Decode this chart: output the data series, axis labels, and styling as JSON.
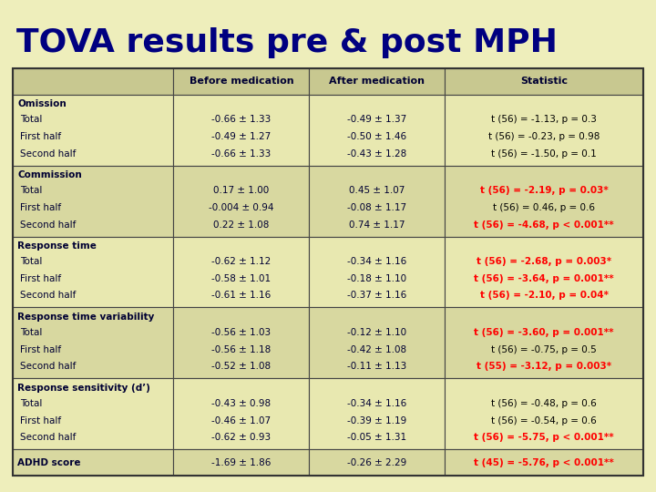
{
  "title": "TOVA results pre & post MPH",
  "background_color": "#eeeebb",
  "title_color": "#000080",
  "header_bg": "#c8c890",
  "row_bg_odd": "#e8e8b0",
  "row_bg_even": "#d8d8a0",
  "text_color": "#000033",
  "headers": [
    "",
    "Before medication",
    "After medication",
    "Statistic"
  ],
  "rows": [
    {
      "label": [
        "Omission",
        "Total",
        "First half",
        "Second half"
      ],
      "before": [
        "",
        "-0.66 ± 1.33",
        "-0.49 ± 1.27",
        "-0.66 ± 1.33"
      ],
      "after": [
        "",
        "-0.49 ± 1.37",
        "-0.50 ± 1.46",
        "-0.43 ± 1.28"
      ],
      "stat": [
        "",
        "t (56) = -1.13, p = 0.3",
        "t (56) = -0.23, p = 0.98",
        "t (56) = -1.50, p = 0.1"
      ],
      "stat_color": [
        "black",
        "black",
        "black",
        "black"
      ],
      "stat_bold": [
        false,
        false,
        false,
        false
      ]
    },
    {
      "label": [
        "Commission",
        "Total",
        "First half",
        "Second half"
      ],
      "before": [
        "",
        "0.17 ± 1.00",
        "-0.004 ± 0.94",
        "0.22 ± 1.08"
      ],
      "after": [
        "",
        "0.45 ± 1.07",
        "-0.08 ± 1.17",
        "0.74 ± 1.17"
      ],
      "stat": [
        "",
        "t (56) = -2.19, p = 0.03*",
        "t (56) = 0.46, p = 0.6",
        "t (56) = -4.68, p < 0.001**"
      ],
      "stat_color": [
        "black",
        "red",
        "black",
        "red"
      ],
      "stat_bold": [
        false,
        true,
        false,
        true
      ]
    },
    {
      "label": [
        "Response time",
        "Total",
        "First half",
        "Second half"
      ],
      "before": [
        "",
        "-0.62 ± 1.12",
        "-0.58 ± 1.01",
        "-0.61 ± 1.16"
      ],
      "after": [
        "",
        "-0.34 ± 1.16",
        "-0.18 ± 1.10",
        "-0.37 ± 1.16"
      ],
      "stat": [
        "",
        "t (56) = -2.68, p = 0.003*",
        "t (56) = -3.64, p = 0.001**",
        "t (56) = -2.10, p = 0.04*"
      ],
      "stat_color": [
        "black",
        "red",
        "red",
        "red"
      ],
      "stat_bold": [
        false,
        true,
        true,
        true
      ]
    },
    {
      "label": [
        "Response time variability",
        "Total",
        "First half",
        "Second half"
      ],
      "before": [
        "",
        "-0.56 ± 1.03",
        "-0.56 ± 1.18",
        "-0.52 ± 1.08"
      ],
      "after": [
        "",
        "-0.12 ± 1.10",
        "-0.42 ± 1.08",
        "-0.11 ± 1.13"
      ],
      "stat": [
        "",
        "t (56) = -3.60, p = 0.001**",
        "t (56) = -0.75, p = 0.5",
        "t (55) = -3.12, p = 0.003*"
      ],
      "stat_color": [
        "black",
        "red",
        "black",
        "red"
      ],
      "stat_bold": [
        false,
        true,
        false,
        true
      ]
    },
    {
      "label": [
        "Response sensitivity (d’)",
        "Total",
        "First half",
        "Second half"
      ],
      "before": [
        "",
        "-0.43 ± 0.98",
        "-0.46 ± 1.07",
        "-0.62 ± 0.93"
      ],
      "after": [
        "",
        "-0.34 ± 1.16",
        "-0.39 ± 1.19",
        "-0.05 ± 1.31"
      ],
      "stat": [
        "",
        "t (56) = -0.48, p = 0.6",
        "t (56) = -0.54, p = 0.6",
        "t (56) = -5.75, p < 0.001**"
      ],
      "stat_color": [
        "black",
        "black",
        "black",
        "red"
      ],
      "stat_bold": [
        false,
        false,
        false,
        true
      ]
    },
    {
      "label": [
        "ADHD score"
      ],
      "before": [
        "-1.69 ± 1.86"
      ],
      "after": [
        "-0.26 ± 2.29"
      ],
      "stat": [
        "t (45) = -5.76, p < 0.001**"
      ],
      "stat_color": [
        "red"
      ],
      "stat_bold": [
        true
      ]
    }
  ]
}
